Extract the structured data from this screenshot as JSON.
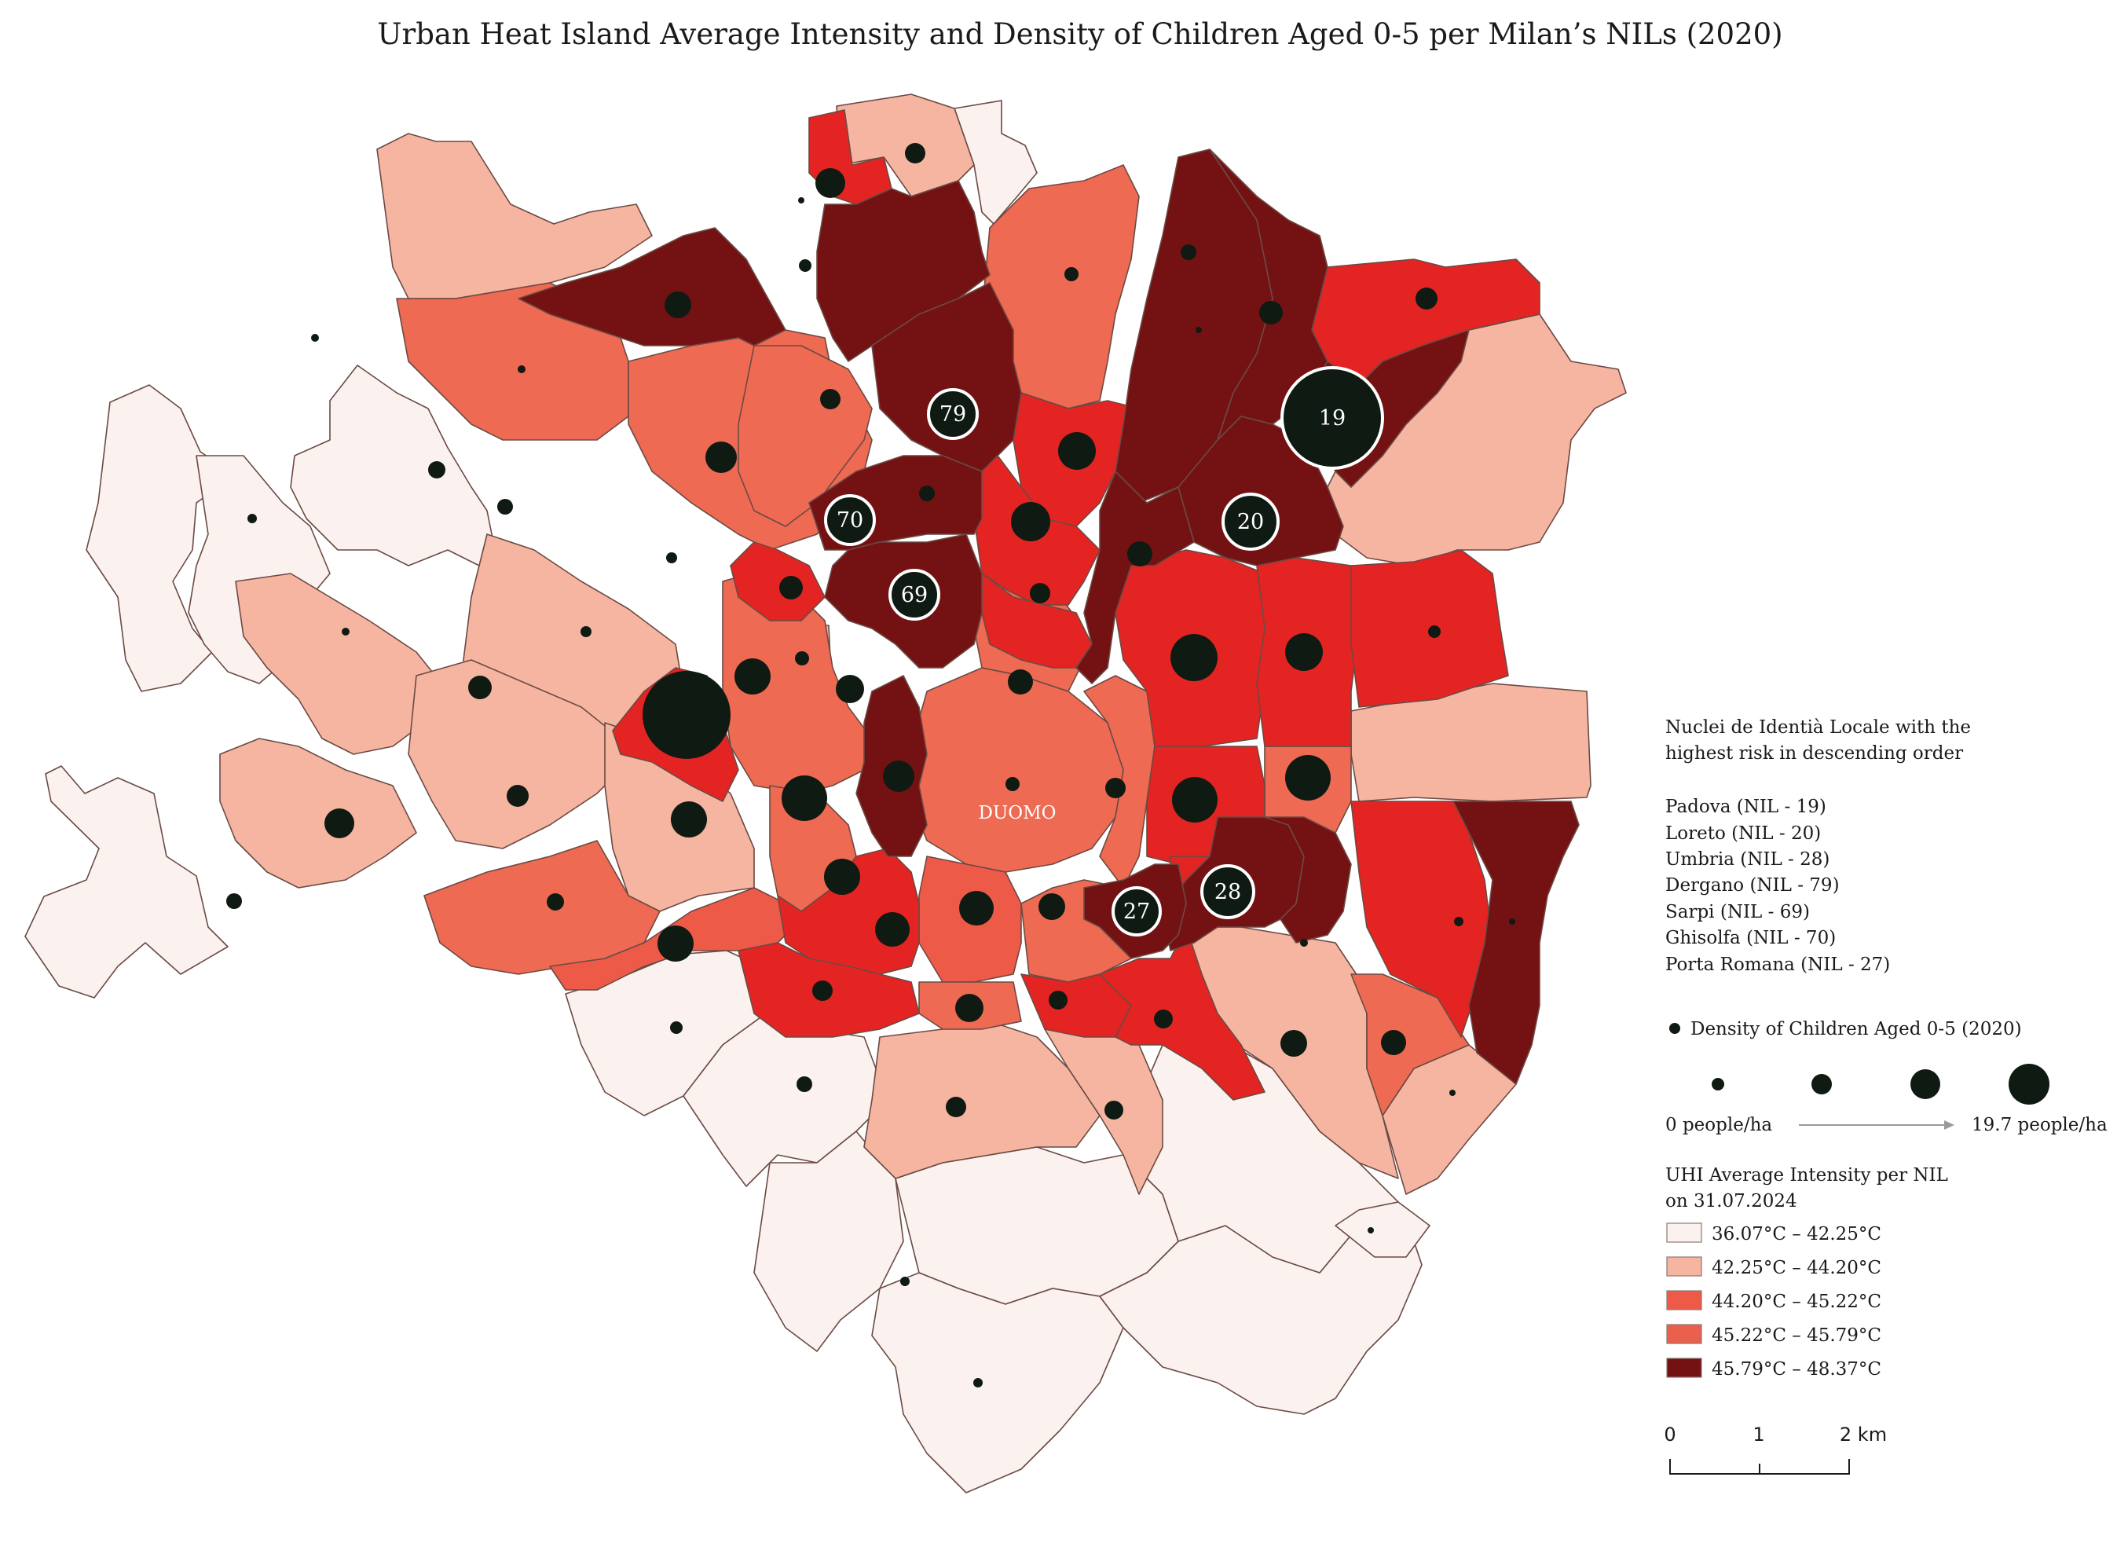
{
  "title": "Urban Heat Island Average Intensity and Density of Children Aged 0-5 per Milan’s NILs (2020)",
  "center_label": "DUOMO",
  "colors": {
    "c1": "#fbf1ee",
    "c2": "#f6b5a1",
    "c3": "#ee5a48",
    "c4": "#e42422",
    "c5": "#741213",
    "dot": "#0f1a12",
    "border": "#6b4a44"
  },
  "ranking": {
    "heading_line1": "Nuclei de Identià Locale with the",
    "heading_line2": "highest risk in descending order",
    "items": [
      {
        "label": "Padova (NIL - 19)",
        "id": "19"
      },
      {
        "label": "Loreto (NIL - 20)",
        "id": "20"
      },
      {
        "label": "Umbria (NIL - 28)",
        "id": "28"
      },
      {
        "label": "Dergano (NIL - 79)",
        "id": "79"
      },
      {
        "label": "Sarpi (NIL - 69)",
        "id": "69"
      },
      {
        "label": "Ghisolfa (NIL - 70)",
        "id": "70"
      },
      {
        "label": "Porta Romana (NIL - 27)",
        "id": "27"
      }
    ]
  },
  "density_legend": {
    "title": "Density of Children Aged 0-5  (2020)",
    "min_label": "0 people/ha",
    "max_label": "19.7 people/ha"
  },
  "uhi_legend": {
    "title_line1": "UHI Average Intensity per NIL",
    "title_line2": "on 31.07.2024",
    "classes": [
      {
        "label": "36.07°C – 42.25°C",
        "color": "#fbf1ee"
      },
      {
        "label": "42.25°C – 44.20°C",
        "color": "#f6b5a1"
      },
      {
        "label": "44.20°C – 45.22°C",
        "color": "#ee5a48"
      },
      {
        "label": "45.22°C – 45.79°C",
        "color": "#e9604c"
      },
      {
        "label": "45.79°C – 48.37°C",
        "color": "#741213"
      }
    ]
  },
  "scale_bar": {
    "ticks": [
      "0",
      "1",
      "2 km"
    ]
  },
  "highlight_labels": [
    "19",
    "20",
    "28",
    "79",
    "69",
    "70",
    "27"
  ]
}
